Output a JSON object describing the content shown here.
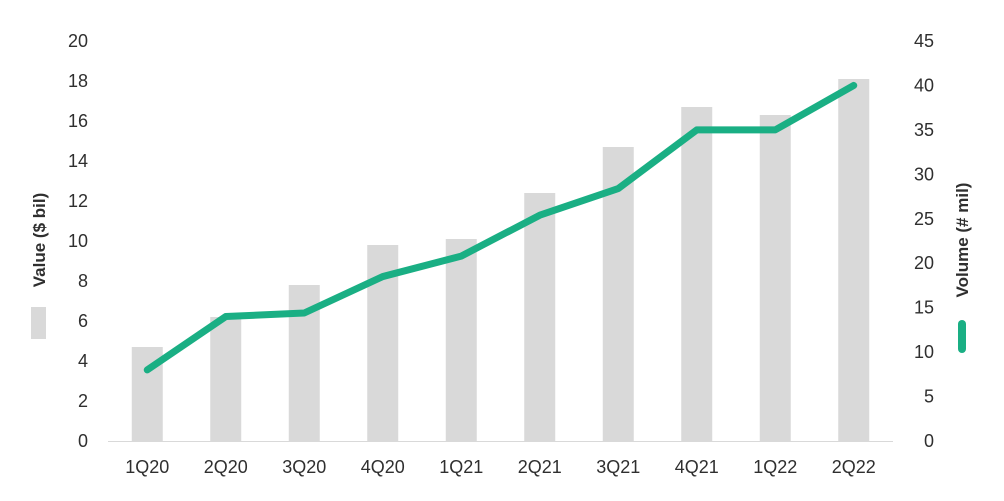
{
  "chart_data": {
    "type": "bar+line",
    "categories": [
      "1Q20",
      "2Q20",
      "3Q20",
      "4Q20",
      "1Q21",
      "2Q21",
      "3Q21",
      "4Q21",
      "1Q22",
      "2Q22"
    ],
    "series": [
      {
        "name": "Value ($ bil)",
        "type": "bar",
        "axis": "left",
        "values": [
          4.7,
          6.2,
          7.8,
          9.8,
          10.1,
          12.4,
          14.7,
          16.7,
          16.3,
          18.1
        ]
      },
      {
        "name": "Volume (# mil)",
        "type": "line",
        "axis": "right",
        "values": [
          8.0,
          14.0,
          14.4,
          18.5,
          20.8,
          25.4,
          28.4,
          35.0,
          35.0,
          40.0
        ]
      }
    ],
    "y_left": {
      "label": "Value ($ bil)",
      "lim": [
        0,
        20
      ],
      "ticks": [
        "0",
        "2",
        "4",
        "6",
        "8",
        "10",
        "12",
        "14",
        "16",
        "18",
        "20"
      ]
    },
    "y_right": {
      "label": "Volume (# mil)",
      "lim": [
        0,
        45
      ],
      "ticks": [
        "0",
        "5",
        "10",
        "15",
        "20",
        "25",
        "30",
        "35",
        "40",
        "45"
      ]
    },
    "colors": {
      "bar": "#d9d9d9",
      "line": "#1aaf84",
      "axis": "#d9d9d9",
      "text": "#2f2f2f"
    },
    "grid": false,
    "legend": "embedded in axis titles"
  }
}
